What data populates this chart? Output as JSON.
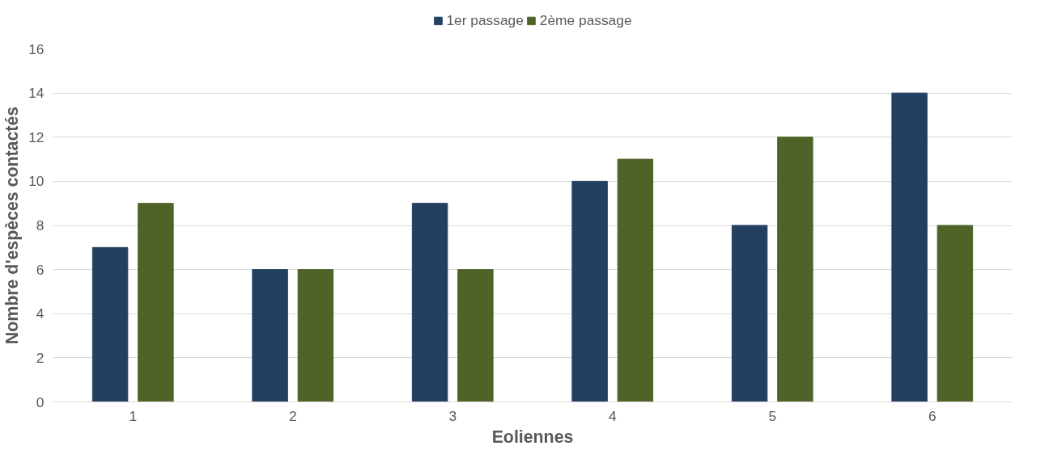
{
  "chart_data": {
    "type": "bar",
    "xlabel": "Eoliennes",
    "ylabel": "Nombre d'espèces contactés",
    "categories": [
      "1",
      "2",
      "3",
      "4",
      "5",
      "6"
    ],
    "series": [
      {
        "name": "1er passage",
        "color": "#243f60",
        "values": [
          7,
          6,
          9,
          10,
          8,
          14
        ]
      },
      {
        "name": "2ème passage",
        "color": "#4f6228",
        "values": [
          9,
          6,
          6,
          11,
          12,
          8
        ]
      }
    ],
    "ylim": [
      0,
      16
    ],
    "yticks": [
      0,
      2,
      4,
      6,
      8,
      10,
      12,
      14,
      16
    ],
    "grid": "y",
    "legend": "top"
  }
}
